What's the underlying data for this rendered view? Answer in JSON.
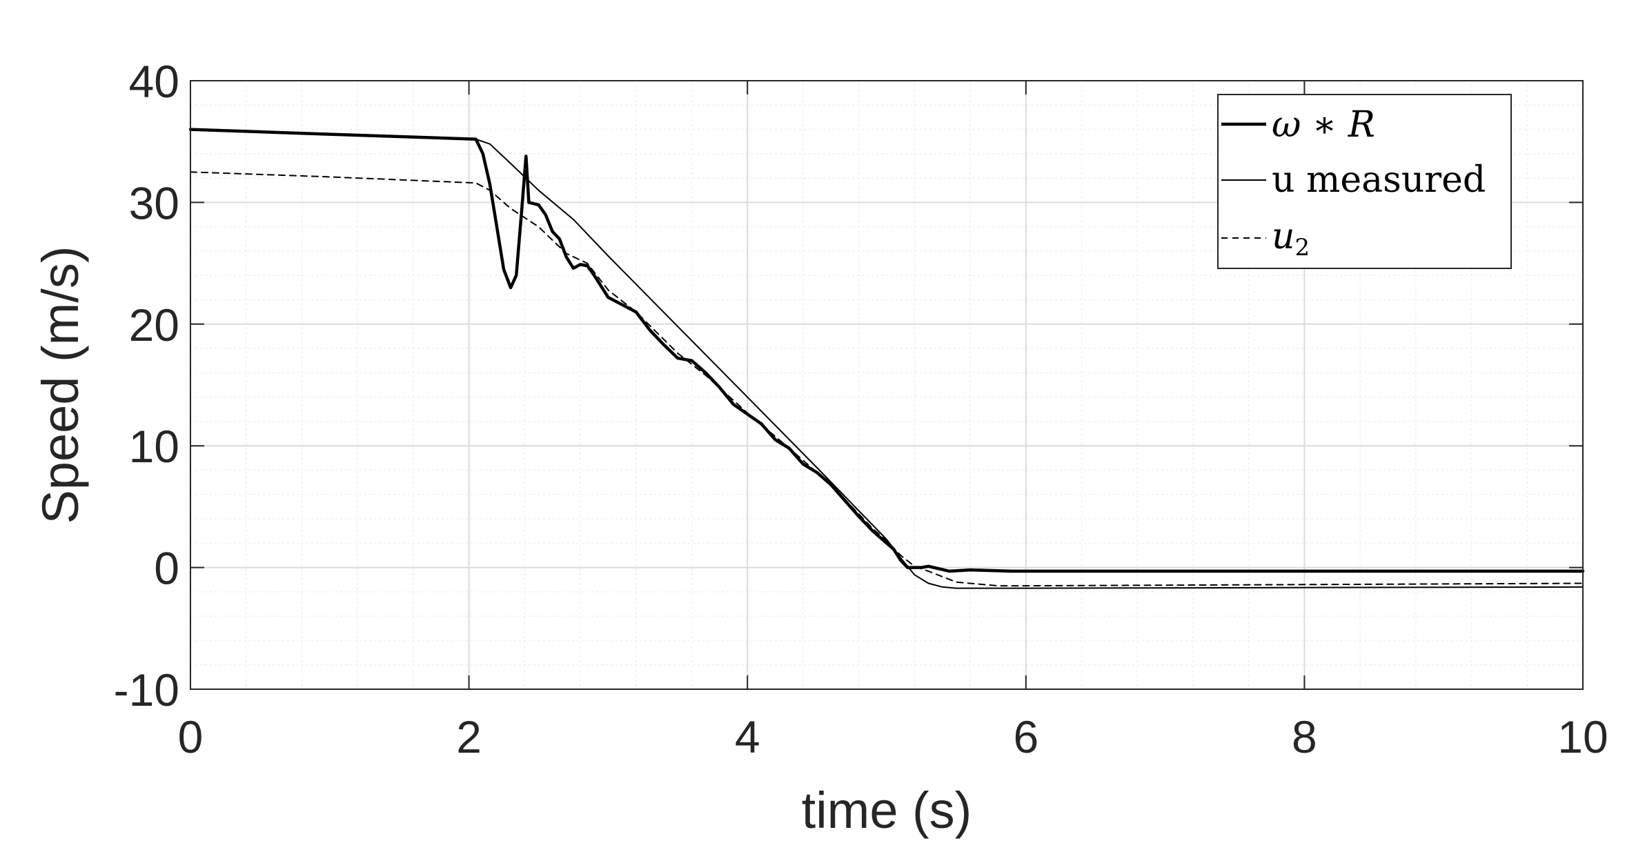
{
  "chart_data": {
    "type": "line",
    "xlabel": "time (s)",
    "ylabel": "Speed (m/s)",
    "xlim": [
      0,
      10
    ],
    "ylim": [
      -10,
      40
    ],
    "xticks": [
      "0",
      "2",
      "4",
      "6",
      "8",
      "10"
    ],
    "yticks": [
      "-10",
      "0",
      "10",
      "20",
      "30",
      "40"
    ],
    "grid": true,
    "minor_grid": true,
    "legend_position": "top-right",
    "series": [
      {
        "name": "ω ∗ R",
        "style": "solid-thick",
        "color": "#000000",
        "points": [
          [
            0,
            36.0
          ],
          [
            1.0,
            35.6
          ],
          [
            2.05,
            35.2
          ],
          [
            2.1,
            34.0
          ],
          [
            2.15,
            31.5
          ],
          [
            2.2,
            28.0
          ],
          [
            2.25,
            24.5
          ],
          [
            2.3,
            23.0
          ],
          [
            2.34,
            24.0
          ],
          [
            2.38,
            29.5
          ],
          [
            2.41,
            33.8
          ],
          [
            2.43,
            30.0
          ],
          [
            2.5,
            29.8
          ],
          [
            2.55,
            29.0
          ],
          [
            2.6,
            27.6
          ],
          [
            2.65,
            27.0
          ],
          [
            2.7,
            25.5
          ],
          [
            2.75,
            24.6
          ],
          [
            2.8,
            24.9
          ],
          [
            2.85,
            24.8
          ],
          [
            2.9,
            24.0
          ],
          [
            3.0,
            22.2
          ],
          [
            3.1,
            21.6
          ],
          [
            3.2,
            21.0
          ],
          [
            3.3,
            19.5
          ],
          [
            3.4,
            18.3
          ],
          [
            3.5,
            17.2
          ],
          [
            3.6,
            17.0
          ],
          [
            3.7,
            16.0
          ],
          [
            3.8,
            14.8
          ],
          [
            3.9,
            13.4
          ],
          [
            4.0,
            12.6
          ],
          [
            4.1,
            11.8
          ],
          [
            4.2,
            10.5
          ],
          [
            4.3,
            9.8
          ],
          [
            4.4,
            8.5
          ],
          [
            4.5,
            7.8
          ],
          [
            4.6,
            6.8
          ],
          [
            4.7,
            5.5
          ],
          [
            4.8,
            4.2
          ],
          [
            4.9,
            3.0
          ],
          [
            5.0,
            2.0
          ],
          [
            5.05,
            1.5
          ],
          [
            5.1,
            0.6
          ],
          [
            5.15,
            0.0
          ],
          [
            5.25,
            0.0
          ],
          [
            5.3,
            0.1
          ],
          [
            5.45,
            -0.3
          ],
          [
            5.6,
            -0.2
          ],
          [
            5.9,
            -0.3
          ],
          [
            10.0,
            -0.3
          ]
        ]
      },
      {
        "name": "u measured",
        "style": "solid-thin",
        "color": "#000000",
        "points": [
          [
            0,
            36.0
          ],
          [
            1.0,
            35.6
          ],
          [
            2.05,
            35.2
          ],
          [
            2.15,
            34.8
          ],
          [
            2.3,
            33.2
          ],
          [
            2.5,
            31.0
          ],
          [
            2.75,
            28.6
          ],
          [
            3.0,
            25.6
          ],
          [
            3.5,
            19.8
          ],
          [
            4.0,
            14.0
          ],
          [
            4.5,
            8.2
          ],
          [
            5.0,
            2.3
          ],
          [
            5.1,
            0.8
          ],
          [
            5.2,
            -0.6
          ],
          [
            5.3,
            -1.3
          ],
          [
            5.4,
            -1.6
          ],
          [
            5.5,
            -1.7
          ],
          [
            6.0,
            -1.7
          ],
          [
            10.0,
            -1.6
          ]
        ]
      },
      {
        "name": "u2",
        "style": "dashed",
        "color": "#000000",
        "points": [
          [
            0,
            32.5
          ],
          [
            1.0,
            32.1
          ],
          [
            2.05,
            31.6
          ],
          [
            2.15,
            31.0
          ],
          [
            2.3,
            29.5
          ],
          [
            2.5,
            28.0
          ],
          [
            2.7,
            25.8
          ],
          [
            2.85,
            25.0
          ],
          [
            3.0,
            22.8
          ],
          [
            3.2,
            21.0
          ],
          [
            3.5,
            17.6
          ],
          [
            3.7,
            15.8
          ],
          [
            4.0,
            12.7
          ],
          [
            4.3,
            9.8
          ],
          [
            4.6,
            6.8
          ],
          [
            4.9,
            3.2
          ],
          [
            5.0,
            2.2
          ],
          [
            5.1,
            1.0
          ],
          [
            5.2,
            0.1
          ],
          [
            5.3,
            -0.3
          ],
          [
            5.5,
            -1.2
          ],
          [
            5.8,
            -1.5
          ],
          [
            6.0,
            -1.5
          ],
          [
            10.0,
            -1.3
          ]
        ]
      }
    ]
  },
  "colors": {
    "axis": "#262626",
    "grid_major": "#dcdcdc",
    "grid_minor": "#efefef",
    "line": "#000000"
  }
}
